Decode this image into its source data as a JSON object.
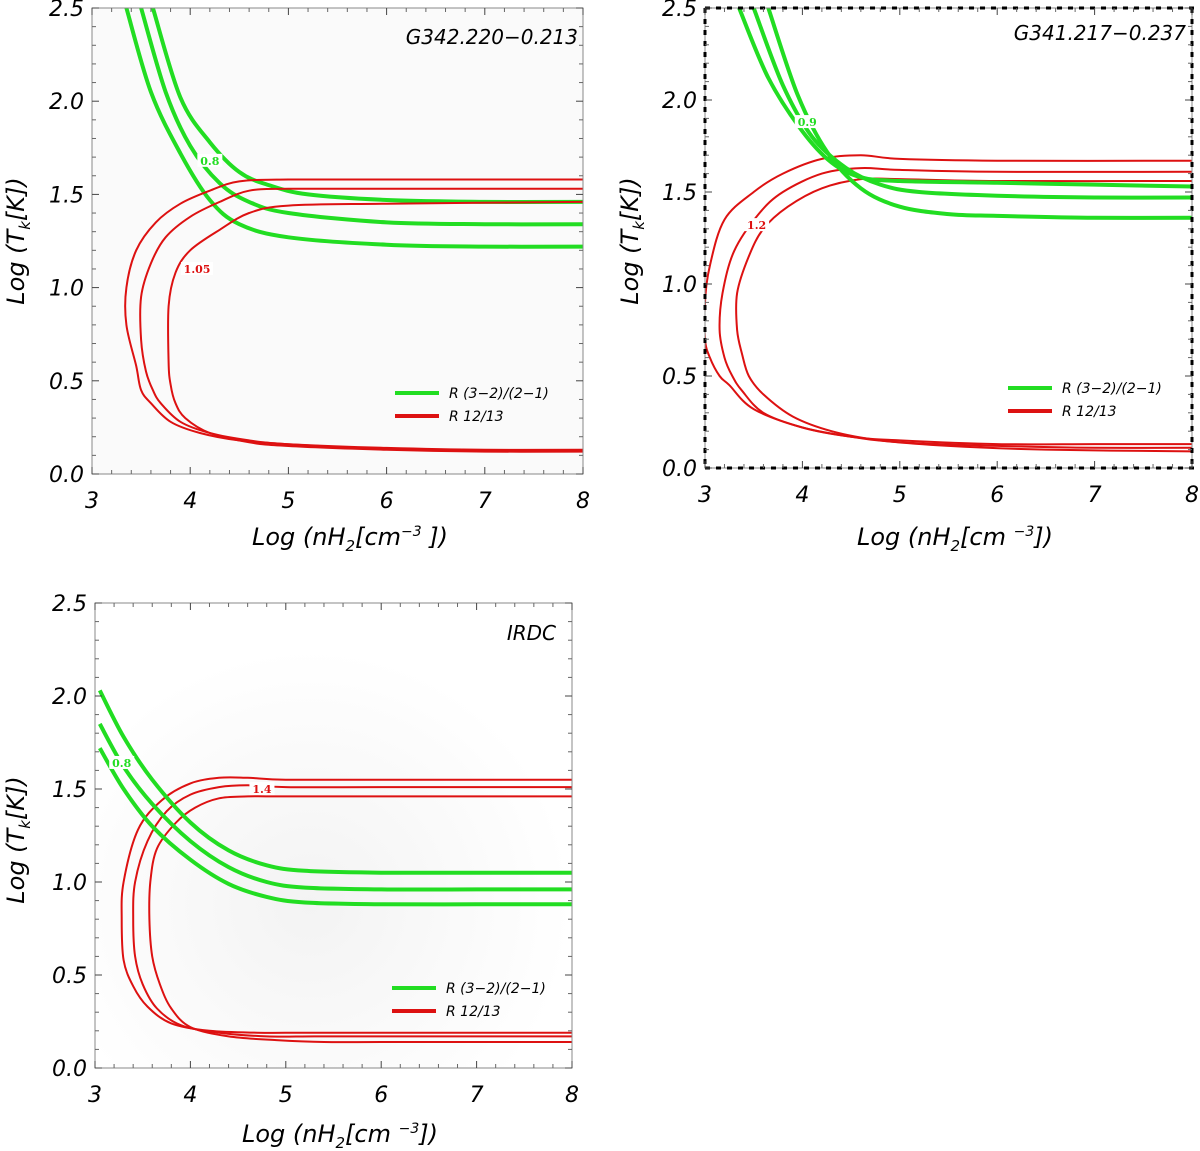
{
  "chart_data": [
    {
      "type": "line",
      "title": "G342.220−0.213",
      "xlabel": {
        "prefix": "Log (nH",
        "sub": "2",
        "mid": "[cm",
        "sup": "−3",
        "suffix": " ])"
      },
      "ylabel": {
        "prefix": "Log (T",
        "sub": "k",
        "suffix": "[K])"
      },
      "xlim": [
        3,
        8
      ],
      "ylim": [
        0,
        2.5
      ],
      "xticks": [
        "3",
        "4",
        "5",
        "6",
        "7",
        "8"
      ],
      "yticks": [
        "0.0",
        "0.5",
        "1.0",
        "1.5",
        "2.0",
        "2.5"
      ],
      "legend": [
        {
          "label": "R (3−2)/(2−1)",
          "color": "#22dd22"
        },
        {
          "label": "R 12/13",
          "color": "#dd1111"
        }
      ],
      "series": [
        {
          "name": "R (3−2)/(2−1)",
          "color": "#22dd22",
          "width": 4,
          "x": [
            3.35,
            3.6,
            3.9,
            4.2,
            4.5,
            5.0,
            6.0,
            7.0,
            8.0
          ],
          "y": [
            2.5,
            2.05,
            1.72,
            1.47,
            1.34,
            1.27,
            1.23,
            1.22,
            1.22
          ]
        },
        {
          "name": "R (3−2)/(2−1)",
          "color": "#22dd22",
          "width": 4,
          "x": [
            3.5,
            3.75,
            4.0,
            4.3,
            4.6,
            5.0,
            6.0,
            7.0,
            8.0
          ],
          "y": [
            2.5,
            2.05,
            1.76,
            1.56,
            1.46,
            1.4,
            1.35,
            1.34,
            1.34
          ]
        },
        {
          "name": "R (3−2)/(2−1)",
          "color": "#22dd22",
          "width": 4,
          "x": [
            3.62,
            3.9,
            4.2,
            4.5,
            4.8,
            5.2,
            6.0,
            7.0,
            8.0
          ],
          "y": [
            2.5,
            2.02,
            1.78,
            1.62,
            1.55,
            1.5,
            1.47,
            1.46,
            1.46
          ]
        },
        {
          "name": "R 12/13",
          "color": "#dd1111",
          "width": 2,
          "x": [
            8.0,
            6.0,
            5.0,
            4.5,
            4.2,
            3.9,
            3.65,
            3.45,
            3.35,
            3.35,
            3.45,
            3.5,
            3.6,
            3.8,
            4.1,
            4.5,
            5.0,
            6.0,
            7.0,
            8.0
          ],
          "y": [
            1.58,
            1.58,
            1.58,
            1.57,
            1.52,
            1.45,
            1.35,
            1.2,
            1.0,
            0.8,
            0.58,
            0.45,
            0.38,
            0.28,
            0.22,
            0.18,
            0.16,
            0.14,
            0.13,
            0.13
          ]
        },
        {
          "name": "R 12/13",
          "color": "#dd1111",
          "width": 2,
          "x": [
            8.0,
            6.0,
            5.0,
            4.6,
            4.3,
            4.0,
            3.75,
            3.6,
            3.5,
            3.5,
            3.55,
            3.62,
            3.7,
            3.9,
            4.2,
            4.6,
            5.0,
            6.0,
            7.0,
            8.0
          ],
          "y": [
            1.53,
            1.53,
            1.53,
            1.52,
            1.46,
            1.38,
            1.27,
            1.13,
            0.95,
            0.72,
            0.55,
            0.45,
            0.38,
            0.28,
            0.22,
            0.18,
            0.16,
            0.135,
            0.125,
            0.125
          ]
        },
        {
          "name": "R 12/13",
          "color": "#dd1111",
          "width": 2,
          "x": [
            8.0,
            6.0,
            5.0,
            4.6,
            4.3,
            4.0,
            3.85,
            3.78,
            3.78,
            3.8,
            3.85,
            3.95,
            4.2,
            4.6,
            5.0,
            6.0,
            7.0,
            8.0
          ],
          "y": [
            1.46,
            1.45,
            1.44,
            1.4,
            1.31,
            1.2,
            1.08,
            0.9,
            0.6,
            0.48,
            0.38,
            0.3,
            0.22,
            0.17,
            0.15,
            0.13,
            0.12,
            0.12
          ]
        }
      ],
      "labels": [
        {
          "text": "0.8",
          "x": 4.2,
          "y": 1.68,
          "color": "#22dd22"
        },
        {
          "text": "1.05",
          "x": 4.07,
          "y": 1.1,
          "color": "#dd1111"
        }
      ]
    },
    {
      "type": "line",
      "title": "G341.217−0.237",
      "xlabel": {
        "prefix": "Log (nH",
        "sub": "2",
        "mid": "[cm ",
        "sup": "−3",
        "suffix": "])"
      },
      "ylabel": {
        "prefix": "Log (T",
        "sub": "k",
        "suffix": "[K])"
      },
      "xlim": [
        3,
        8
      ],
      "ylim": [
        0,
        2.5
      ],
      "xticks": [
        "3",
        "4",
        "5",
        "6",
        "7",
        "8"
      ],
      "yticks": [
        "0.0",
        "0.5",
        "1.0",
        "1.5",
        "2.0",
        "2.5"
      ],
      "legend": [
        {
          "label": "R (3−2)/(2−1)",
          "color": "#22dd22"
        },
        {
          "label": "R 12/13",
          "color": "#dd1111"
        }
      ],
      "series": [
        {
          "name": "R (3−2)/(2−1)",
          "color": "#22dd22",
          "width": 4,
          "x": [
            3.35,
            3.65,
            4.0,
            4.3,
            4.6,
            5.0,
            6.0,
            7.0,
            8.0
          ],
          "y": [
            2.5,
            2.12,
            1.83,
            1.66,
            1.58,
            1.56,
            1.55,
            1.54,
            1.53
          ]
        },
        {
          "name": "R (3−2)/(2−1)",
          "color": "#22dd22",
          "width": 4,
          "x": [
            3.5,
            3.8,
            4.1,
            4.45,
            4.8,
            5.2,
            6.0,
            7.0,
            8.0
          ],
          "y": [
            2.5,
            2.08,
            1.8,
            1.63,
            1.54,
            1.5,
            1.48,
            1.47,
            1.47
          ]
        },
        {
          "name": "R (3−2)/(2−1)",
          "color": "#22dd22",
          "width": 4,
          "x": [
            3.65,
            3.95,
            4.25,
            4.6,
            5.0,
            5.5,
            6.0,
            7.0,
            8.0
          ],
          "y": [
            2.5,
            2.03,
            1.72,
            1.52,
            1.42,
            1.38,
            1.37,
            1.36,
            1.36
          ]
        }
      ],
      "series_red": [
        {
          "name": "R 12/13",
          "color": "#dd1111",
          "width": 2,
          "x": [
            8.0,
            6.0,
            5.0,
            4.6,
            4.2,
            3.8,
            3.5,
            3.2,
            3.05,
            3.0,
            3.0,
            3.05,
            3.15,
            3.25,
            3.5,
            4.0,
            4.5,
            5.0,
            6.0,
            7.0,
            8.0
          ],
          "y": [
            1.67,
            1.67,
            1.68,
            1.7,
            1.68,
            1.6,
            1.5,
            1.35,
            1.1,
            0.9,
            0.7,
            0.6,
            0.5,
            0.45,
            0.32,
            0.22,
            0.17,
            0.15,
            0.13,
            0.13,
            0.13
          ]
        },
        {
          "name": "R 12/13",
          "color": "#dd1111",
          "width": 2,
          "x": [
            8.0,
            6.0,
            5.0,
            4.6,
            4.2,
            3.8,
            3.55,
            3.3,
            3.18,
            3.15,
            3.2,
            3.28,
            3.38,
            3.6,
            4.0,
            4.5,
            5.0,
            6.0,
            7.0,
            8.0
          ],
          "y": [
            1.61,
            1.61,
            1.62,
            1.63,
            1.6,
            1.5,
            1.38,
            1.18,
            0.95,
            0.75,
            0.6,
            0.5,
            0.42,
            0.3,
            0.22,
            0.17,
            0.14,
            0.12,
            0.11,
            0.11
          ]
        },
        {
          "name": "R 12/13",
          "color": "#dd1111",
          "width": 2,
          "x": [
            8.0,
            6.0,
            5.0,
            4.6,
            4.2,
            3.85,
            3.6,
            3.45,
            3.33,
            3.33,
            3.38,
            3.45,
            3.6,
            3.9,
            4.3,
            4.8,
            5.5,
            6.5,
            8.0
          ],
          "y": [
            1.56,
            1.56,
            1.57,
            1.57,
            1.52,
            1.42,
            1.3,
            1.15,
            0.95,
            0.75,
            0.62,
            0.5,
            0.4,
            0.28,
            0.2,
            0.15,
            0.12,
            0.1,
            0.09
          ]
        }
      ],
      "labels": [
        {
          "text": "0.9",
          "x": 4.05,
          "y": 1.88,
          "color": "#22dd22"
        },
        {
          "text": "1.2",
          "x": 3.53,
          "y": 1.32,
          "color": "#dd1111"
        }
      ]
    },
    {
      "type": "line",
      "title": "IRDC",
      "xlabel": {
        "prefix": "Log (nH",
        "sub": "2",
        "mid": "[cm ",
        "sup": "−3",
        "suffix": "])"
      },
      "ylabel": {
        "prefix": "Log (T",
        "sub": "k",
        "suffix": "[K])"
      },
      "xlim": [
        3,
        8
      ],
      "ylim": [
        0,
        2.5
      ],
      "xticks": [
        "3",
        "4",
        "5",
        "6",
        "7",
        "8"
      ],
      "yticks": [
        "0.0",
        "0.5",
        "1.0",
        "1.5",
        "2.0",
        "2.5"
      ],
      "legend": [
        {
          "label": "R (3−2)/(2−1)",
          "color": "#22dd22"
        },
        {
          "label": "R 12/13",
          "color": "#dd1111"
        }
      ],
      "series": [
        {
          "name": "R (3−2)/(2−1)",
          "color": "#22dd22",
          "width": 4,
          "x": [
            3.05,
            3.3,
            3.6,
            4.0,
            4.4,
            4.8,
            5.2,
            6.0,
            7.0,
            8.0
          ],
          "y": [
            2.03,
            1.78,
            1.55,
            1.32,
            1.17,
            1.09,
            1.06,
            1.05,
            1.05,
            1.05
          ]
        },
        {
          "name": "R (3−2)/(2−1)",
          "color": "#22dd22",
          "width": 4,
          "x": [
            3.05,
            3.3,
            3.6,
            4.0,
            4.4,
            4.8,
            5.2,
            6.0,
            7.0,
            8.0
          ],
          "y": [
            1.85,
            1.62,
            1.42,
            1.22,
            1.08,
            1.0,
            0.97,
            0.96,
            0.96,
            0.96
          ]
        },
        {
          "name": "R (3−2)/(2−1)",
          "color": "#22dd22",
          "width": 4,
          "x": [
            3.05,
            3.3,
            3.6,
            4.0,
            4.4,
            4.8,
            5.2,
            6.0,
            7.0,
            8.0
          ],
          "y": [
            1.72,
            1.5,
            1.3,
            1.12,
            0.99,
            0.92,
            0.89,
            0.88,
            0.88,
            0.88
          ]
        }
      ],
      "series_red": [
        {
          "name": "R 12/13",
          "color": "#dd1111",
          "width": 2,
          "x": [
            8.0,
            6.0,
            5.0,
            4.6,
            4.3,
            4.0,
            3.7,
            3.45,
            3.3,
            3.28,
            3.3,
            3.4,
            3.55,
            3.8,
            4.2,
            4.7,
            5.2,
            6.0,
            7.0,
            8.0
          ],
          "y": [
            1.55,
            1.55,
            1.55,
            1.56,
            1.56,
            1.53,
            1.44,
            1.28,
            1.0,
            0.8,
            0.58,
            0.44,
            0.33,
            0.24,
            0.2,
            0.19,
            0.19,
            0.19,
            0.19,
            0.19
          ]
        },
        {
          "name": "R 12/13",
          "color": "#dd1111",
          "width": 2,
          "x": [
            8.0,
            6.0,
            5.0,
            4.6,
            4.3,
            4.0,
            3.75,
            3.55,
            3.42,
            3.4,
            3.42,
            3.5,
            3.65,
            3.9,
            4.3,
            4.8,
            5.3,
            6.0,
            7.0,
            8.0
          ],
          "y": [
            1.51,
            1.51,
            1.51,
            1.52,
            1.51,
            1.47,
            1.38,
            1.22,
            1.0,
            0.8,
            0.6,
            0.45,
            0.32,
            0.23,
            0.19,
            0.17,
            0.17,
            0.17,
            0.17,
            0.17
          ]
        },
        {
          "name": "R 12/13",
          "color": "#dd1111",
          "width": 2,
          "x": [
            8.0,
            6.0,
            5.0,
            4.6,
            4.3,
            4.05,
            3.85,
            3.65,
            3.58,
            3.57,
            3.6,
            3.68,
            3.8,
            4.0,
            4.4,
            4.9,
            5.4,
            6.0,
            7.0,
            8.0
          ],
          "y": [
            1.46,
            1.46,
            1.46,
            1.46,
            1.45,
            1.4,
            1.32,
            1.18,
            1.0,
            0.8,
            0.6,
            0.45,
            0.32,
            0.22,
            0.17,
            0.15,
            0.14,
            0.14,
            0.14,
            0.14
          ]
        }
      ],
      "labels": [
        {
          "text": "0.8",
          "x": 3.28,
          "y": 1.64,
          "color": "#22dd22"
        },
        {
          "text": "1.4",
          "x": 4.75,
          "y": 1.5,
          "color": "#dd1111"
        }
      ]
    }
  ]
}
